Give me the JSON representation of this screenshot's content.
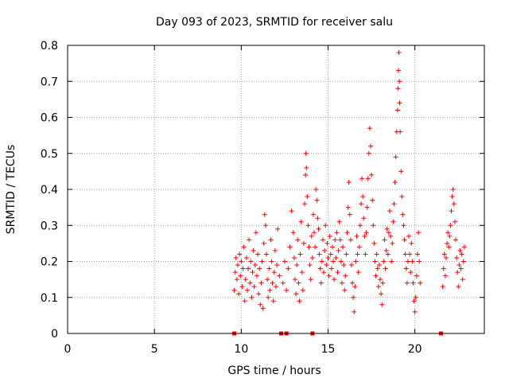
{
  "chart_data": {
    "type": "scatter",
    "title": "Day 093 of 2023, SRMTID for receiver salu",
    "xlabel": "GPS time / hours",
    "ylabel": "SRMTID / TECUs",
    "xlim": [
      0,
      24
    ],
    "ylim": [
      0,
      0.8
    ],
    "xticks": [
      0,
      5,
      10,
      15,
      20
    ],
    "xtick_labels": [
      "0",
      "5",
      "10",
      "15",
      "20"
    ],
    "yticks": [
      0,
      0.1,
      0.2,
      0.3,
      0.4,
      0.5,
      0.6,
      0.7,
      0.8
    ],
    "ytick_labels": [
      "0",
      "0.1",
      "0.2",
      "0.3",
      "0.4",
      "0.5",
      "0.6",
      "0.7",
      "0.8"
    ],
    "grid": true,
    "marker": "+",
    "color": "#ff0000",
    "series": [
      {
        "name": "SRMTID",
        "points": [
          [
            9.6,
            0.12
          ],
          [
            9.65,
            0.17
          ],
          [
            9.7,
            0.21
          ],
          [
            9.75,
            0.15
          ],
          [
            9.8,
            0.19
          ],
          [
            9.85,
            0.11
          ],
          [
            9.9,
            0.22
          ],
          [
            9.95,
            0.16
          ],
          [
            10.0,
            0.2
          ],
          [
            10.05,
            0.13
          ],
          [
            10.1,
            0.18
          ],
          [
            10.15,
            0.24
          ],
          [
            10.2,
            0.09
          ],
          [
            10.25,
            0.15
          ],
          [
            10.3,
            0.21
          ],
          [
            10.35,
            0.12
          ],
          [
            10.4,
            0.18
          ],
          [
            10.45,
            0.26
          ],
          [
            10.5,
            0.14
          ],
          [
            10.55,
            0.2
          ],
          [
            10.6,
            0.1
          ],
          [
            10.65,
            0.17
          ],
          [
            10.7,
            0.23
          ],
          [
            10.75,
            0.13
          ],
          [
            10.8,
            0.19
          ],
          [
            10.85,
            0.28
          ],
          [
            10.9,
            0.16
          ],
          [
            10.95,
            0.22
          ],
          [
            11.0,
            0.11
          ],
          [
            11.05,
            0.18
          ],
          [
            11.1,
            0.08
          ],
          [
            11.15,
            0.14
          ],
          [
            11.2,
            0.2
          ],
          [
            11.25,
            0.07
          ],
          [
            11.3,
            0.25
          ],
          [
            11.35,
            0.33
          ],
          [
            11.4,
            0.3
          ],
          [
            11.45,
            0.22
          ],
          [
            11.5,
            0.15
          ],
          [
            11.55,
            0.1
          ],
          [
            11.6,
            0.18
          ],
          [
            11.65,
            0.12
          ],
          [
            11.7,
            0.26
          ],
          [
            11.75,
            0.2
          ],
          [
            11.8,
            0.14
          ],
          [
            11.85,
            0.09
          ],
          [
            11.9,
            0.17
          ],
          [
            11.95,
            0.23
          ],
          [
            12.0,
            0.13
          ],
          [
            12.05,
            0.19
          ],
          [
            12.1,
            0.29
          ],
          [
            12.2,
            0.16
          ],
          [
            12.4,
            0.14
          ],
          [
            12.5,
            0.2
          ],
          [
            12.6,
            0.12
          ],
          [
            12.7,
            0.18
          ],
          [
            12.8,
            0.24
          ],
          [
            12.9,
            0.34
          ],
          [
            13.0,
            0.28
          ],
          [
            13.05,
            0.21
          ],
          [
            13.1,
            0.15
          ],
          [
            13.15,
            0.11
          ],
          [
            13.2,
            0.19
          ],
          [
            13.25,
            0.26
          ],
          [
            13.3,
            0.14
          ],
          [
            13.35,
            0.09
          ],
          [
            13.4,
            0.22
          ],
          [
            13.45,
            0.31
          ],
          [
            13.5,
            0.17
          ],
          [
            13.55,
            0.12
          ],
          [
            13.6,
            0.25
          ],
          [
            13.65,
            0.36
          ],
          [
            13.7,
            0.44
          ],
          [
            13.72,
            0.5
          ],
          [
            13.75,
            0.46
          ],
          [
            13.8,
            0.38
          ],
          [
            13.85,
            0.3
          ],
          [
            13.9,
            0.24
          ],
          [
            13.95,
            0.19
          ],
          [
            14.0,
            0.15
          ],
          [
            14.05,
            0.27
          ],
          [
            14.1,
            0.21
          ],
          [
            14.15,
            0.33
          ],
          [
            14.2,
            0.28
          ],
          [
            14.25,
            0.24
          ],
          [
            14.3,
            0.4
          ],
          [
            14.35,
            0.37
          ],
          [
            14.4,
            0.32
          ],
          [
            14.45,
            0.29
          ],
          [
            14.5,
            0.22
          ],
          [
            14.55,
            0.18
          ],
          [
            14.6,
            0.14
          ],
          [
            14.65,
            0.2
          ],
          [
            14.7,
            0.26
          ],
          [
            14.75,
            0.17
          ],
          [
            14.8,
            0.23
          ],
          [
            14.85,
            0.3
          ],
          [
            14.9,
            0.19
          ],
          [
            14.95,
            0.25
          ],
          [
            15.0,
            0.21
          ],
          [
            15.05,
            0.16
          ],
          [
            15.1,
            0.27
          ],
          [
            15.15,
            0.22
          ],
          [
            15.2,
            0.18
          ],
          [
            15.25,
            0.24
          ],
          [
            15.3,
            0.2
          ],
          [
            15.35,
            0.15
          ],
          [
            15.4,
            0.26
          ],
          [
            15.45,
            0.21
          ],
          [
            15.5,
            0.28
          ],
          [
            15.55,
            0.17
          ],
          [
            15.6,
            0.23
          ],
          [
            15.65,
            0.31
          ],
          [
            15.7,
            0.26
          ],
          [
            15.75,
            0.2
          ],
          [
            15.8,
            0.14
          ],
          [
            15.85,
            0.24
          ],
          [
            15.9,
            0.19
          ],
          [
            15.95,
            0.12
          ],
          [
            16.0,
            0.16
          ],
          [
            16.05,
            0.22
          ],
          [
            16.1,
            0.28
          ],
          [
            16.15,
            0.35
          ],
          [
            16.2,
            0.42
          ],
          [
            16.25,
            0.33
          ],
          [
            16.3,
            0.26
          ],
          [
            16.35,
            0.19
          ],
          [
            16.4,
            0.14
          ],
          [
            16.45,
            0.1
          ],
          [
            16.5,
            0.06
          ],
          [
            16.55,
            0.13
          ],
          [
            16.6,
            0.2
          ],
          [
            16.65,
            0.27
          ],
          [
            16.7,
            0.22
          ],
          [
            16.75,
            0.17
          ],
          [
            16.8,
            0.24
          ],
          [
            16.85,
            0.3
          ],
          [
            16.9,
            0.36
          ],
          [
            16.95,
            0.43
          ],
          [
            17.0,
            0.38
          ],
          [
            17.05,
            0.32
          ],
          [
            17.1,
            0.27
          ],
          [
            17.15,
            0.22
          ],
          [
            17.2,
            0.28
          ],
          [
            17.25,
            0.35
          ],
          [
            17.3,
            0.43
          ],
          [
            17.35,
            0.5
          ],
          [
            17.4,
            0.57
          ],
          [
            17.45,
            0.52
          ],
          [
            17.5,
            0.44
          ],
          [
            17.55,
            0.37
          ],
          [
            17.6,
            0.3
          ],
          [
            17.65,
            0.25
          ],
          [
            17.7,
            0.2
          ],
          [
            17.75,
            0.16
          ],
          [
            17.8,
            0.22
          ],
          [
            17.85,
            0.18
          ],
          [
            17.9,
            0.13
          ],
          [
            17.95,
            0.19
          ],
          [
            18.0,
            0.15
          ],
          [
            18.05,
            0.11
          ],
          [
            18.1,
            0.08
          ],
          [
            18.15,
            0.14
          ],
          [
            18.2,
            0.2
          ],
          [
            18.25,
            0.26
          ],
          [
            18.3,
            0.18
          ],
          [
            18.35,
            0.23
          ],
          [
            18.4,
            0.29
          ],
          [
            18.45,
            0.22
          ],
          [
            18.5,
            0.28
          ],
          [
            18.55,
            0.34
          ],
          [
            18.6,
            0.27
          ],
          [
            18.65,
            0.2
          ],
          [
            18.7,
            0.25
          ],
          [
            18.75,
            0.31
          ],
          [
            18.8,
            0.36
          ],
          [
            18.85,
            0.42
          ],
          [
            18.9,
            0.49
          ],
          [
            18.95,
            0.56
          ],
          [
            19.0,
            0.62
          ],
          [
            19.02,
            0.68
          ],
          [
            19.05,
            0.73
          ],
          [
            19.08,
            0.78
          ],
          [
            19.1,
            0.7
          ],
          [
            19.12,
            0.64
          ],
          [
            19.15,
            0.56
          ],
          [
            19.2,
            0.45
          ],
          [
            19.25,
            0.38
          ],
          [
            19.3,
            0.33
          ],
          [
            19.35,
            0.3
          ],
          [
            19.4,
            0.26
          ],
          [
            19.45,
            0.22
          ],
          [
            19.5,
            0.18
          ],
          [
            19.55,
            0.14
          ],
          [
            19.6,
            0.2
          ],
          [
            19.65,
            0.27
          ],
          [
            19.7,
            0.22
          ],
          [
            19.75,
            0.17
          ],
          [
            19.8,
            0.25
          ],
          [
            19.85,
            0.2
          ],
          [
            19.9,
            0.14
          ],
          [
            19.95,
            0.09
          ],
          [
            20.0,
            0.06
          ],
          [
            20.05,
            0.1
          ],
          [
            20.1,
            0.16
          ],
          [
            20.15,
            0.22
          ],
          [
            20.2,
            0.28
          ],
          [
            20.25,
            0.2
          ],
          [
            20.3,
            0.14
          ],
          [
            21.6,
            0.13
          ],
          [
            21.65,
            0.18
          ],
          [
            21.7,
            0.22
          ],
          [
            21.75,
            0.16
          ],
          [
            21.8,
            0.21
          ],
          [
            21.85,
            0.25
          ],
          [
            21.9,
            0.28
          ],
          [
            21.95,
            0.24
          ],
          [
            22.0,
            0.27
          ],
          [
            22.05,
            0.3
          ],
          [
            22.1,
            0.34
          ],
          [
            22.15,
            0.38
          ],
          [
            22.2,
            0.4
          ],
          [
            22.25,
            0.36
          ],
          [
            22.3,
            0.31
          ],
          [
            22.35,
            0.26
          ],
          [
            22.4,
            0.21
          ],
          [
            22.45,
            0.17
          ],
          [
            22.5,
            0.13
          ],
          [
            22.55,
            0.19
          ],
          [
            22.6,
            0.23
          ],
          [
            22.65,
            0.18
          ],
          [
            22.7,
            0.22
          ],
          [
            22.75,
            0.15
          ],
          [
            22.8,
            0.2
          ],
          [
            22.85,
            0.24
          ]
        ]
      },
      {
        "name": "zero-markers",
        "marker": "square",
        "points": [
          [
            9.6,
            0
          ],
          [
            12.3,
            0
          ],
          [
            12.6,
            0
          ],
          [
            14.1,
            0
          ],
          [
            21.5,
            0
          ]
        ]
      }
    ]
  }
}
